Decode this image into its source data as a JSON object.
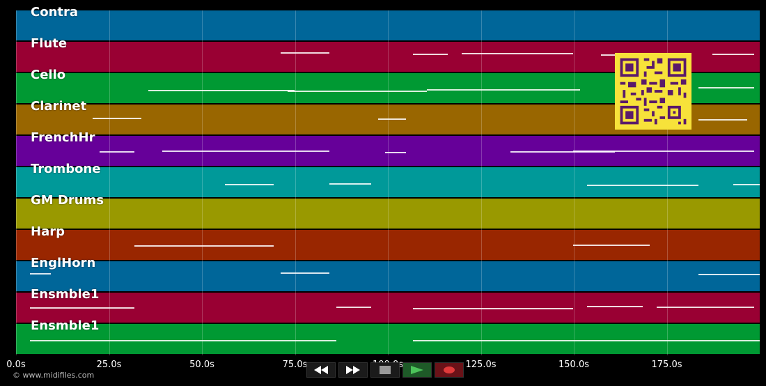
{
  "tracks": [
    {
      "name": "Contra",
      "color": "#006699"
    },
    {
      "name": "Flute",
      "color": "#990033"
    },
    {
      "name": "Cello",
      "color": "#009933"
    },
    {
      "name": "Clarinet",
      "color": "#996600"
    },
    {
      "name": "FrenchHr",
      "color": "#660099"
    },
    {
      "name": "Trombone",
      "color": "#009999"
    },
    {
      "name": "GM Drums",
      "color": "#999900"
    },
    {
      "name": "Harp",
      "color": "#992600"
    },
    {
      "name": "EnglHorn",
      "color": "#006699"
    },
    {
      "name": "Ensmble1",
      "color": "#990033"
    },
    {
      "name": "Ensmble1",
      "color": "#009933"
    }
  ],
  "axis": {
    "ticks": [
      "0.0s",
      "25.0s",
      "50.0s",
      "75.0s",
      "100.0s",
      "125.0s",
      "150.0s",
      "175.0s"
    ],
    "tick_values": [
      0,
      25,
      50,
      75,
      100,
      125,
      150,
      175
    ],
    "max_seconds": 200
  },
  "controls": {
    "rewind_icon": "rewind-icon",
    "fast_forward_icon": "fast-forward-icon",
    "stop_icon": "stop-icon",
    "play_icon": "play-icon",
    "record_icon": "record-icon"
  },
  "footer": {
    "copyright": "© www.midifiles.com"
  },
  "qr_code": {
    "icon": "qr-code-icon",
    "color": "#5a1a6a",
    "background": "#f7e23a"
  }
}
